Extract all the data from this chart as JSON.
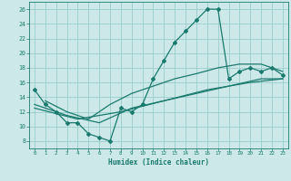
{
  "xlabel": "Humidex (Indice chaleur)",
  "bg_color": "#cce8e8",
  "grid_color": "#99cccc",
  "line_color": "#1a7a6e",
  "xlim": [
    -0.5,
    23.5
  ],
  "ylim": [
    7,
    27
  ],
  "xticks": [
    0,
    1,
    2,
    3,
    4,
    5,
    6,
    7,
    8,
    9,
    10,
    11,
    12,
    13,
    14,
    15,
    16,
    17,
    18,
    19,
    20,
    21,
    22,
    23
  ],
  "yticks": [
    8,
    10,
    12,
    14,
    16,
    18,
    20,
    22,
    24,
    26
  ],
  "line1_x": [
    0,
    1,
    2,
    3,
    4,
    5,
    6,
    7,
    8,
    9,
    10,
    11,
    12,
    13,
    14,
    15,
    16,
    17,
    18,
    19,
    20,
    21,
    22,
    23
  ],
  "line1_y": [
    15,
    13,
    12,
    10.5,
    10.5,
    9,
    8.5,
    8,
    12.5,
    12,
    13,
    16.5,
    19,
    21.5,
    23,
    24.5,
    26,
    26,
    16.5,
    17.5,
    18,
    17.5,
    18,
    17
  ],
  "line2_x": [
    1,
    3,
    5,
    7,
    9,
    11,
    13,
    15,
    17,
    19,
    21,
    23
  ],
  "line2_y": [
    13.5,
    12.0,
    11.0,
    13.0,
    14.5,
    15.5,
    16.5,
    17.2,
    18.0,
    18.5,
    18.5,
    17.5
  ],
  "line3_x": [
    0,
    3,
    6,
    9,
    12,
    15,
    18,
    21,
    23
  ],
  "line3_y": [
    13,
    11.5,
    10.5,
    12.5,
    13.5,
    14.5,
    15.5,
    16.5,
    16.5
  ],
  "line4_x": [
    0,
    4,
    8,
    12,
    16,
    20,
    23
  ],
  "line4_y": [
    12.5,
    11.0,
    12.0,
    13.5,
    15.0,
    16.0,
    16.5
  ]
}
